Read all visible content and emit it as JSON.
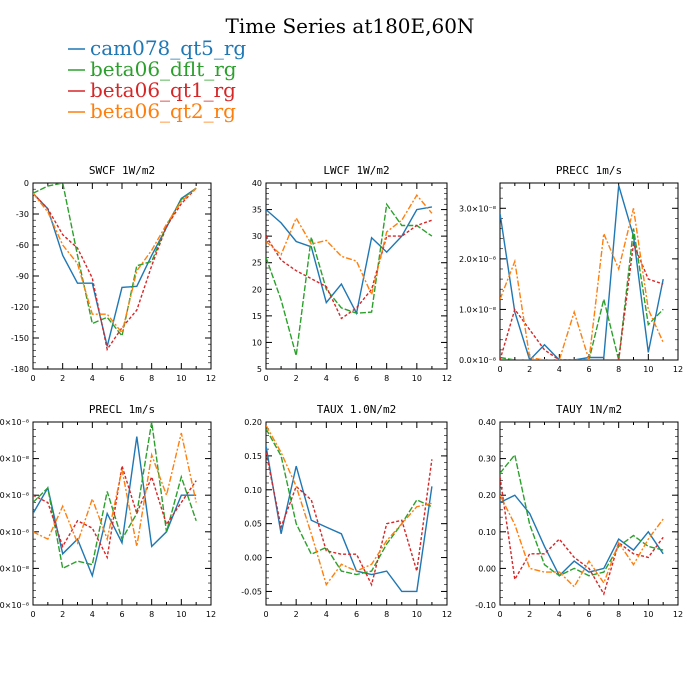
{
  "title": "Time Series at180E,60N",
  "legend": [
    {
      "label": "cam078_qt5_rg",
      "color": "#1f77b4"
    },
    {
      "label": "beta06_dflt_rg",
      "color": "#2ca02c"
    },
    {
      "label": "beta06_qt1_rg",
      "color": "#d62728"
    },
    {
      "label": "beta06_qt2_rg",
      "color": "#ff7f0e"
    }
  ],
  "chart_data": [
    {
      "type": "line",
      "title": "SWCF   1W/m2",
      "x": [
        0,
        1,
        2,
        3,
        4,
        5,
        6,
        7,
        8,
        9,
        10,
        11
      ],
      "xlim": [
        0,
        12
      ],
      "xticks": [
        "0",
        "2",
        "4",
        "6",
        "8",
        "10",
        "12"
      ],
      "ylim": [
        -180,
        0
      ],
      "yticks": [
        "0",
        "-30",
        "-60",
        "-90",
        "-120",
        "-150",
        "-180"
      ],
      "series": [
        {
          "name": "cam078_qt5_rg",
          "values": [
            -10,
            -25,
            -70,
            -97,
            -97,
            -158,
            -101,
            -100,
            -70,
            -43,
            -15,
            -5
          ]
        },
        {
          "name": "beta06_dflt_rg",
          "values": [
            -10,
            -3,
            0,
            -70,
            -136,
            -130,
            -148,
            -80,
            -76,
            -41,
            -16,
            -5
          ]
        },
        {
          "name": "beta06_qt1_rg",
          "values": [
            -10,
            -25,
            -50,
            -63,
            -92,
            -161,
            -140,
            -123,
            -80,
            -42,
            -20,
            -5
          ]
        },
        {
          "name": "beta06_qt2_rg",
          "values": [
            -10,
            -28,
            -60,
            -78,
            -127,
            -127,
            -145,
            -85,
            -65,
            -40,
            -18,
            -5
          ]
        }
      ]
    },
    {
      "type": "line",
      "title": "LWCF   1W/m2",
      "x": [
        0,
        1,
        2,
        3,
        4,
        5,
        6,
        7,
        8,
        9,
        10,
        11
      ],
      "xlim": [
        0,
        12
      ],
      "xticks": [
        "0",
        "2",
        "4",
        "6",
        "8",
        "10",
        "12"
      ],
      "ylim": [
        5,
        40
      ],
      "yticks": [
        "5",
        "10",
        "15",
        "20",
        "25",
        "30",
        "35",
        "40"
      ],
      "series": [
        {
          "name": "cam078_qt5_rg",
          "values": [
            35,
            32.5,
            29,
            28,
            17.5,
            21,
            15.5,
            29.7,
            27,
            30,
            35,
            35.5
          ]
        },
        {
          "name": "beta06_dflt_rg",
          "values": [
            26,
            18,
            7.5,
            29.8,
            20,
            16.5,
            15.5,
            15.7,
            36,
            32,
            32,
            30
          ]
        },
        {
          "name": "beta06_qt1_rg",
          "values": [
            30,
            25.5,
            23.5,
            22,
            20.5,
            14.5,
            16.5,
            20,
            30,
            30,
            32,
            33
          ]
        },
        {
          "name": "beta06_qt2_rg",
          "values": [
            29,
            26.5,
            33.4,
            28.5,
            29.2,
            26.2,
            25.3,
            19,
            30.8,
            33,
            37.7,
            34.3
          ]
        }
      ]
    },
    {
      "type": "line",
      "title": "PRECC   1m/s",
      "x": [
        0,
        1,
        2,
        3,
        4,
        5,
        6,
        7,
        8,
        9,
        10,
        11
      ],
      "xlim": [
        0,
        12
      ],
      "xticks": [
        "0",
        "2",
        "4",
        "6",
        "8",
        "10",
        "12"
      ],
      "ylim": [
        0,
        3.5
      ],
      "yticks": [
        "0.0×10⁻⁸",
        "1.0×10⁻⁸",
        "2.0×10⁻⁸",
        "3.0×10⁻⁸"
      ],
      "series": [
        {
          "name": "cam078_qt5_rg",
          "values": [
            2.9,
            0.95,
            0,
            0.3,
            0,
            0,
            0.05,
            0.05,
            3.45,
            2.45,
            0.15,
            1.6
          ]
        },
        {
          "name": "beta06_dflt_rg",
          "values": [
            0.05,
            0,
            0,
            0,
            0,
            0,
            0,
            1.2,
            0,
            2.6,
            0.7,
            1.0
          ]
        },
        {
          "name": "beta06_qt1_rg",
          "values": [
            0,
            1.0,
            0.6,
            0.2,
            0,
            0,
            0,
            0,
            0,
            2.3,
            1.6,
            1.5
          ]
        },
        {
          "name": "beta06_qt2_rg",
          "values": [
            1.2,
            1.95,
            0.05,
            0,
            0,
            0.95,
            0,
            2.5,
            1.8,
            3.0,
            1.0,
            0.35
          ]
        }
      ]
    },
    {
      "type": "line",
      "title": "PRECL   1m/s",
      "x": [
        0,
        1,
        2,
        3,
        4,
        5,
        6,
        7,
        8,
        9,
        10,
        11
      ],
      "xlim": [
        0,
        12
      ],
      "xticks": [
        "0",
        "2",
        "4",
        "6",
        "8",
        "10",
        "12"
      ],
      "ylim": [
        0,
        5
      ],
      "yticks": [
        ".0×10⁻⁸",
        ".0×10⁻⁸",
        ".0×10⁻⁸",
        ".0×10⁻⁸",
        ".0×10⁻⁸",
        ".0×10⁻⁸"
      ],
      "series": [
        {
          "name": "cam078_qt5_rg",
          "values": [
            2.5,
            3.2,
            1.4,
            1.8,
            0.8,
            2.5,
            1.7,
            4.6,
            1.6,
            2.0,
            3.0,
            3.0
          ]
        },
        {
          "name": "beta06_dflt_rg",
          "values": [
            2.8,
            3.2,
            1.0,
            1.2,
            1.1,
            3.1,
            1.8,
            2.5,
            5.0,
            2.0,
            3.5,
            2.3
          ]
        },
        {
          "name": "beta06_qt1_rg",
          "values": [
            3.0,
            2.8,
            1.6,
            2.3,
            2.1,
            1.3,
            3.8,
            2.5,
            3.5,
            2.2,
            2.8,
            3.4
          ]
        },
        {
          "name": "beta06_qt2_rg",
          "values": [
            2.0,
            1.8,
            2.7,
            1.7,
            2.9,
            1.8,
            3.7,
            1.6,
            4.1,
            3.0,
            4.7,
            2.8
          ]
        }
      ]
    },
    {
      "type": "line",
      "title": "TAUX   1.0N/m2",
      "x": [
        0,
        1,
        2,
        3,
        4,
        5,
        6,
        7,
        8,
        9,
        10,
        11
      ],
      "xlim": [
        0,
        12
      ],
      "xticks": [
        "0",
        "2",
        "4",
        "6",
        "8",
        "10",
        "12"
      ],
      "ylim": [
        -0.07,
        0.2
      ],
      "yticks": [
        "0.20",
        "0.15",
        "0.10",
        "0.05",
        "0.00",
        "-0.05"
      ],
      "series": [
        {
          "name": "cam078_qt5_rg",
          "values": [
            0.165,
            0.035,
            0.135,
            0.055,
            0.045,
            0.035,
            -0.02,
            -0.025,
            -0.02,
            -0.05,
            -0.05,
            0.105
          ]
        },
        {
          "name": "beta06_dflt_rg",
          "values": [
            0.19,
            0.15,
            0.05,
            0.005,
            0.015,
            -0.02,
            -0.025,
            -0.02,
            0.02,
            0.05,
            0.085,
            0.075
          ]
        },
        {
          "name": "beta06_qt1_rg",
          "values": [
            0.155,
            0.045,
            0.105,
            0.085,
            0.01,
            0.005,
            0.005,
            -0.04,
            0.05,
            0.055,
            -0.02,
            0.145
          ]
        },
        {
          "name": "beta06_qt2_rg",
          "values": [
            0.195,
            0.155,
            0.105,
            0.035,
            -0.04,
            -0.01,
            -0.02,
            -0.01,
            0.025,
            0.05,
            0.075,
            0.08
          ]
        }
      ]
    },
    {
      "type": "line",
      "title": "TAUY   1N/m2",
      "x": [
        0,
        1,
        2,
        3,
        4,
        5,
        6,
        7,
        8,
        9,
        10,
        11
      ],
      "xlim": [
        0,
        12
      ],
      "xticks": [
        "0",
        "2",
        "4",
        "6",
        "8",
        "10",
        "12"
      ],
      "ylim": [
        -0.1,
        0.4
      ],
      "yticks": [
        "0.40",
        "0.30",
        "0.20",
        "0.10",
        "0.00",
        "-0.10"
      ],
      "series": [
        {
          "name": "cam078_qt5_rg",
          "values": [
            0.18,
            0.2,
            0.15,
            0.06,
            -0.02,
            0.02,
            -0.01,
            0.0,
            0.08,
            0.05,
            0.1,
            0.04
          ]
        },
        {
          "name": "beta06_dflt_rg",
          "values": [
            0.26,
            0.31,
            0.12,
            0.01,
            -0.02,
            0.0,
            -0.02,
            -0.01,
            0.06,
            0.09,
            0.06,
            0.05
          ]
        },
        {
          "name": "beta06_qt1_rg",
          "values": [
            0.25,
            -0.03,
            0.04,
            0.04,
            0.08,
            0.03,
            0.0,
            -0.07,
            0.07,
            0.04,
            0.03,
            0.085
          ]
        },
        {
          "name": "beta06_qt2_rg",
          "values": [
            0.2,
            0.12,
            0.0,
            -0.01,
            -0.01,
            -0.05,
            0.02,
            -0.04,
            0.07,
            0.01,
            0.08,
            0.135
          ]
        }
      ]
    }
  ]
}
